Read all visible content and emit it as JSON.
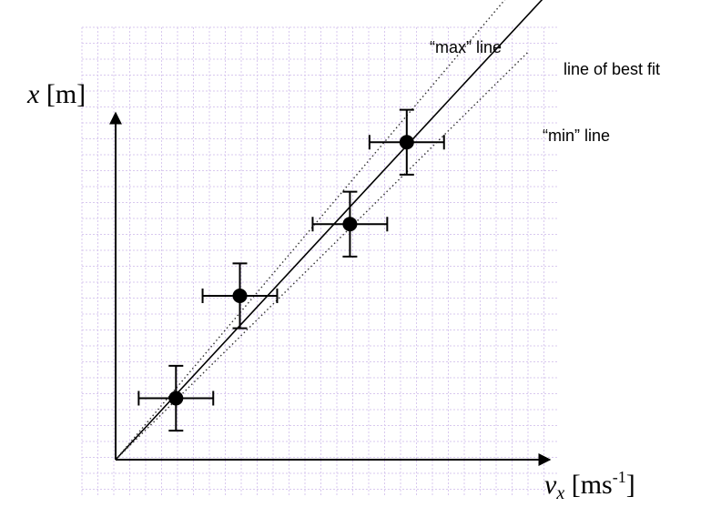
{
  "chart_data": {
    "type": "scatter",
    "title": "",
    "xlabel": {
      "var": "v",
      "sub": "x",
      "unit_base": "ms",
      "unit_sup": "-1"
    },
    "ylabel": {
      "var": "x",
      "unit": "m"
    },
    "xlim": [
      0,
      10
    ],
    "ylim": [
      0,
      10
    ],
    "grid": true,
    "points": [
      {
        "x": 1.7,
        "y": 1.8,
        "xerr": 1.05,
        "yerr": 0.95
      },
      {
        "x": 3.5,
        "y": 4.8,
        "xerr": 1.05,
        "yerr": 0.95
      },
      {
        "x": 6.6,
        "y": 6.9,
        "xerr": 1.05,
        "yerr": 0.95
      },
      {
        "x": 8.2,
        "y": 9.3,
        "xerr": 1.05,
        "yerr": 0.95
      }
    ],
    "lines": [
      {
        "name": "line of best fit",
        "style": "solid",
        "slope": 1.122,
        "intercept": 0
      },
      {
        "name": "“max” line",
        "style": "dotted",
        "slope": 1.229,
        "intercept": 0
      },
      {
        "name": "“min” line",
        "style": "dotted",
        "slope": 1.028,
        "intercept": 0
      }
    ]
  },
  "colors": {
    "grid": "#d9c9ef",
    "ink": "#000000",
    "dotted": "#333333"
  }
}
